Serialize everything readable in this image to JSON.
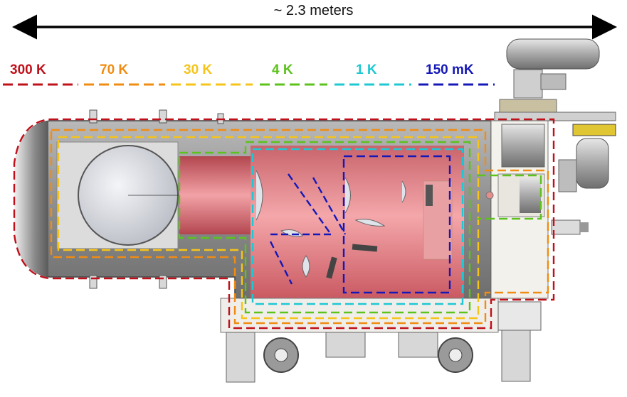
{
  "dimension_label": "~ 2.3 meters",
  "stages": [
    {
      "label": "300 K",
      "color": "#c0101a"
    },
    {
      "label": "70 K",
      "color": "#f08c12"
    },
    {
      "label": "30 K",
      "color": "#f6c418"
    },
    {
      "label": "4 K",
      "color": "#5cc21c"
    },
    {
      "label": "1 K",
      "color": "#1ec8d2"
    },
    {
      "label": "150 mK",
      "color": "#1418b8"
    }
  ],
  "colors": {
    "vessel": "#9a9a9a",
    "vessel_dark": "#5e5e5e",
    "cold_interior": "#e98a8e",
    "arrow": "#000000"
  }
}
